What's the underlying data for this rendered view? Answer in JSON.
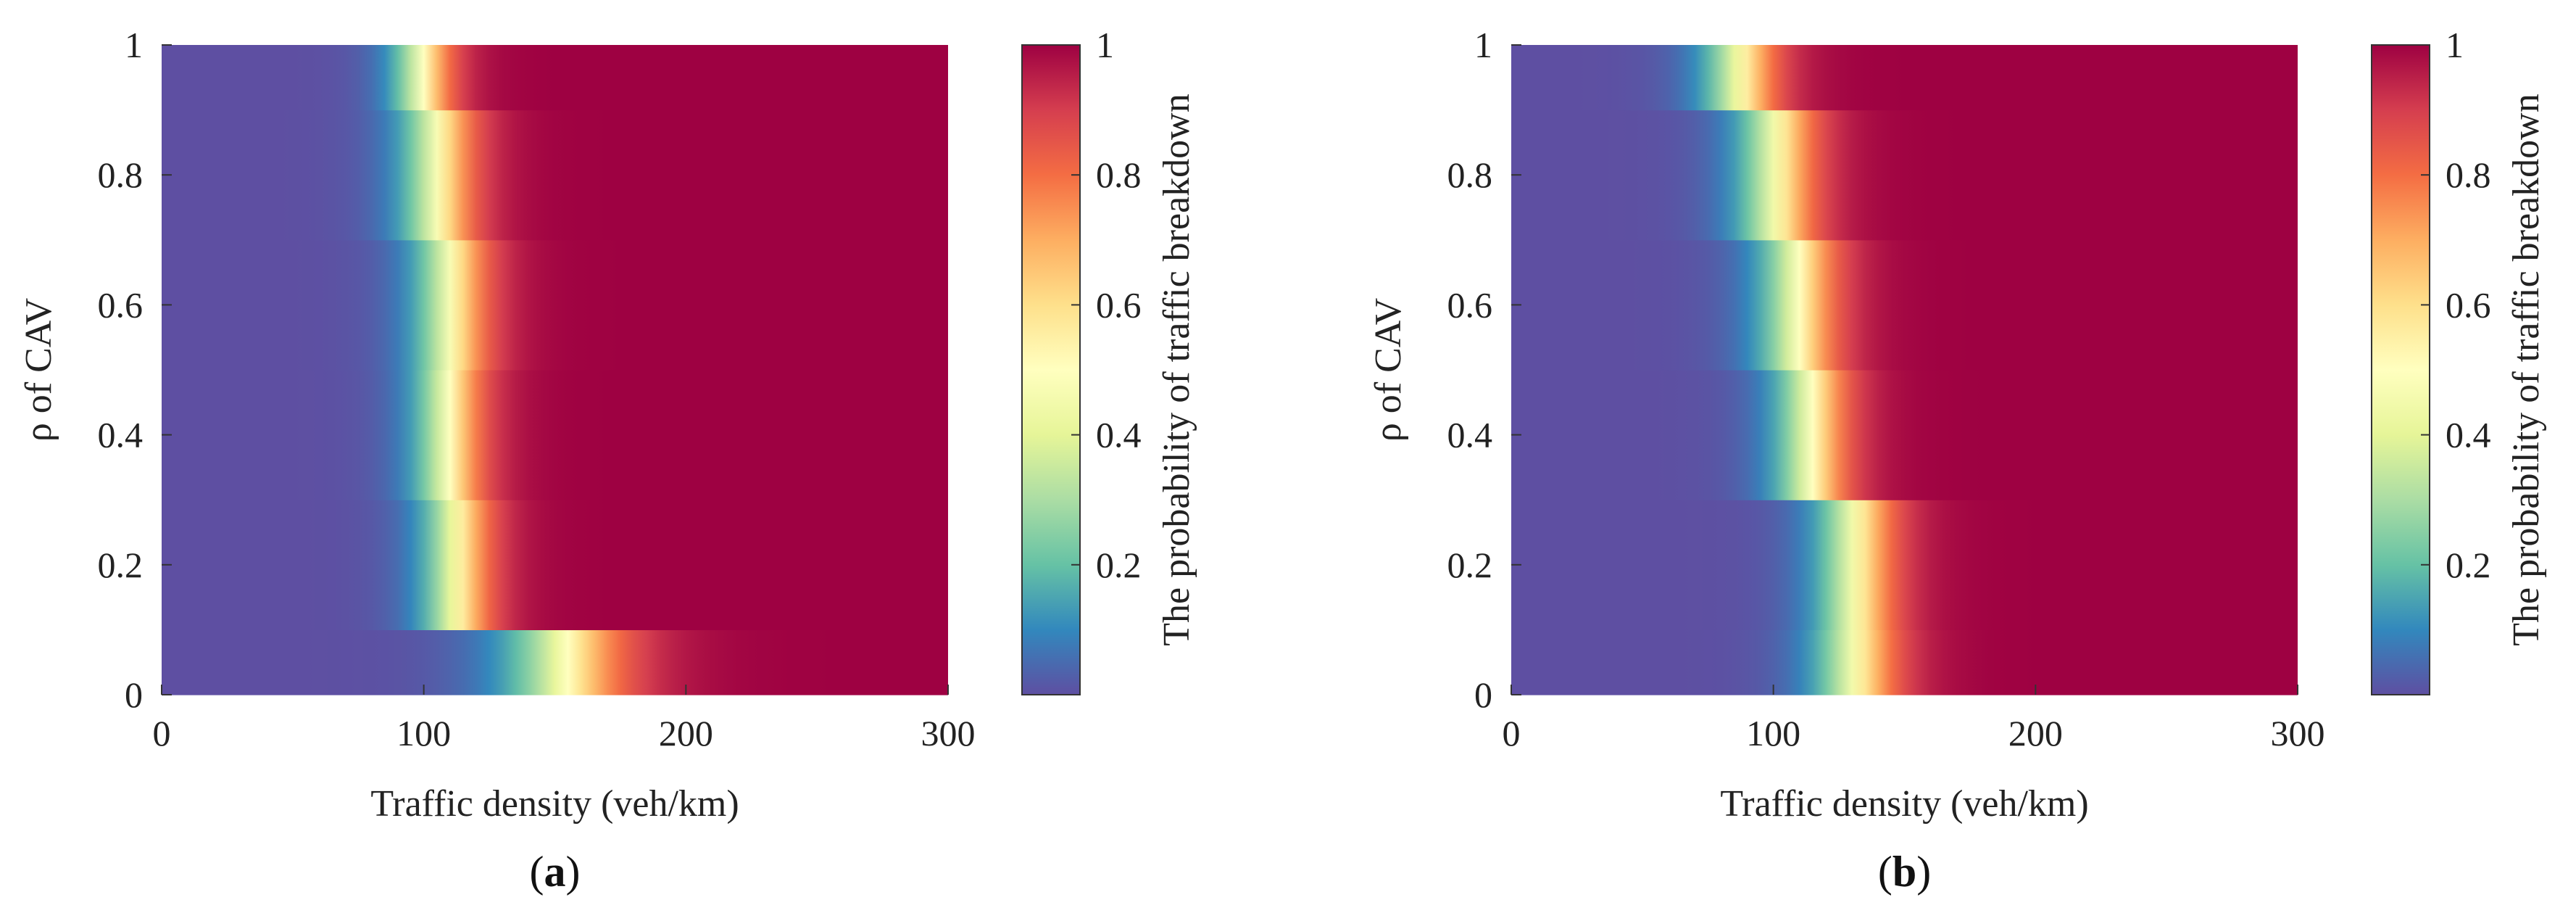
{
  "chart_data": [
    {
      "type": "heatmap",
      "panel_label": "a",
      "xlabel": "Traffic density (veh/km)",
      "ylabel": "ρ of CAV",
      "xlim": [
        0,
        300
      ],
      "ylim": [
        0,
        1
      ],
      "xticks": [
        "0",
        "100",
        "200",
        "300"
      ],
      "yticks": [
        "0",
        "0.2",
        "0.4",
        "0.6",
        "0.8",
        "1"
      ],
      "colorbar": {
        "label": "The probability of traffic breakdown",
        "range": [
          0,
          1
        ],
        "ticks": [
          "0.2",
          "0.4",
          "0.6",
          "0.8",
          "1"
        ],
        "colormap": "Spectral (reversed)",
        "colors": [
          "#5e4fa2",
          "#3288bd",
          "#66c2a5",
          "#abdda4",
          "#e6f598",
          "#ffffbf",
          "#fee08b",
          "#fdae61",
          "#f46d43",
          "#d53e4f",
          "#9e0142"
        ]
      },
      "rows": [
        {
          "rho_range": [
            0.0,
            0.1
          ],
          "x50": 155,
          "width": 55
        },
        {
          "rho_range": [
            0.1,
            0.3
          ],
          "x50": 113,
          "width": 32
        },
        {
          "rho_range": [
            0.3,
            0.5
          ],
          "x50": 110,
          "width": 32
        },
        {
          "rho_range": [
            0.5,
            0.7
          ],
          "x50": 111,
          "width": 34
        },
        {
          "rho_range": [
            0.7,
            0.9
          ],
          "x50": 106,
          "width": 34
        },
        {
          "rho_range": [
            0.9,
            1.0
          ],
          "x50": 100,
          "width": 28
        }
      ]
    },
    {
      "type": "heatmap",
      "panel_label": "b",
      "xlabel": "Traffic density (veh/km)",
      "ylabel": "ρ of CAV",
      "xlim": [
        0,
        300
      ],
      "ylim": [
        0,
        1
      ],
      "xticks": [
        "0",
        "100",
        "200",
        "300"
      ],
      "yticks": [
        "0",
        "0.2",
        "0.4",
        "0.6",
        "0.8",
        "1"
      ],
      "colorbar": {
        "label": "The probability of traffic breakdown",
        "range": [
          0,
          1
        ],
        "ticks": [
          "0.2",
          "0.4",
          "0.6",
          "0.8",
          "1"
        ],
        "colormap": "Spectral (reversed)",
        "colors": [
          "#5e4fa2",
          "#3288bd",
          "#66c2a5",
          "#abdda4",
          "#e6f598",
          "#ffffbf",
          "#fee08b",
          "#fdae61",
          "#f46d43",
          "#d53e4f",
          "#9e0142"
        ]
      },
      "rows": [
        {
          "rho_range": [
            0.0,
            0.1
          ],
          "x50": 132,
          "width": 38
        },
        {
          "rho_range": [
            0.1,
            0.3
          ],
          "x50": 132,
          "width": 36
        },
        {
          "rho_range": [
            0.3,
            0.5
          ],
          "x50": 115,
          "width": 34
        },
        {
          "rho_range": [
            0.5,
            0.7
          ],
          "x50": 110,
          "width": 36
        },
        {
          "rho_range": [
            0.7,
            0.9
          ],
          "x50": 102,
          "width": 36
        },
        {
          "rho_range": [
            0.9,
            1.0
          ],
          "x50": 88,
          "width": 34
        }
      ]
    }
  ]
}
